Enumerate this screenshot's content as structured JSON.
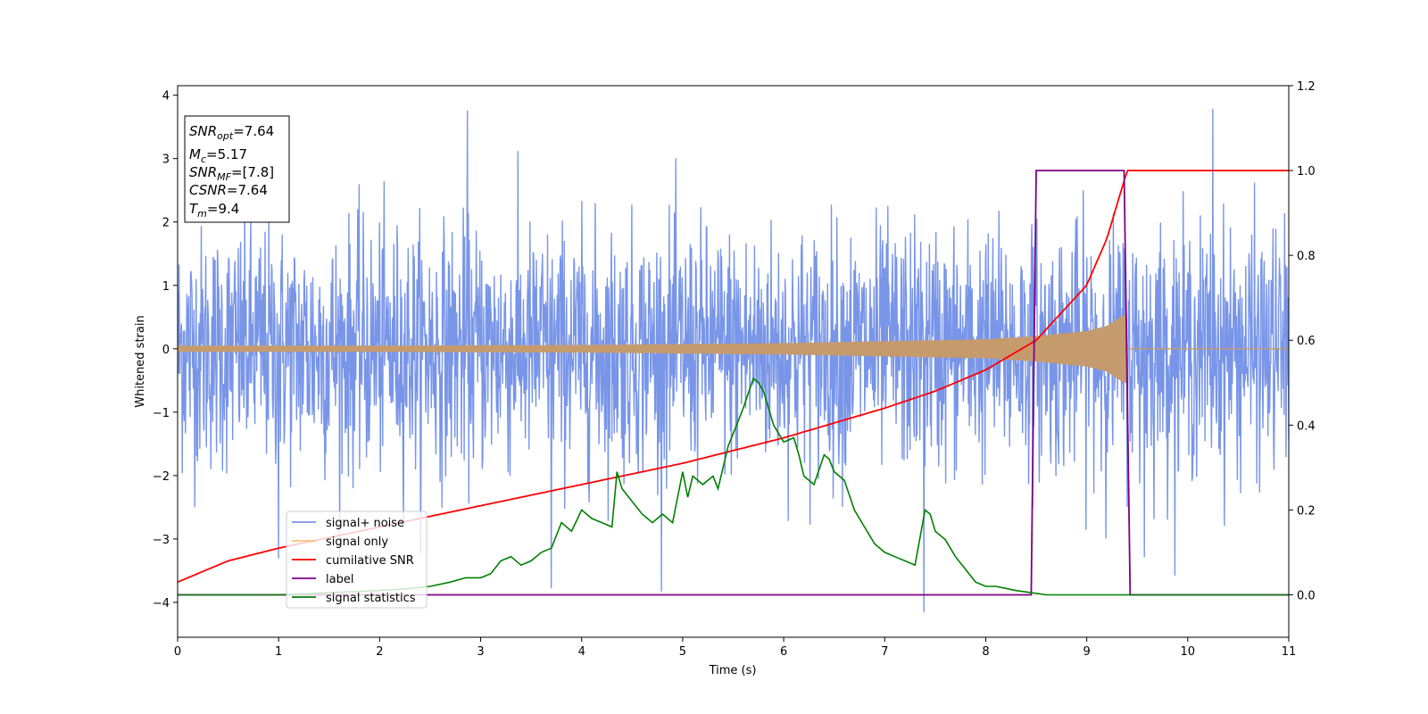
{
  "chart_data": {
    "type": "line",
    "xlabel": "Time (s)",
    "ylabel": "Whitened strain",
    "xlim": [
      0,
      11
    ],
    "ylim": [
      -4.55,
      4.15
    ],
    "y2lim": [
      -0.1,
      1.2
    ],
    "grid": false,
    "x_ticks": [
      0,
      1,
      2,
      3,
      4,
      5,
      6,
      7,
      8,
      9,
      10,
      11
    ],
    "y_ticks": [
      -4,
      -3,
      -2,
      -1,
      0,
      1,
      2,
      3,
      4
    ],
    "y2_ticks": [
      "0.0",
      "0.2",
      "0.4",
      "0.6",
      "0.8",
      "1.0",
      "1.2"
    ],
    "x_tick_labels": [
      "0",
      "1",
      "2",
      "3",
      "4",
      "5",
      "6",
      "7",
      "8",
      "9",
      "10",
      "11"
    ],
    "y_tick_labels": [
      "−4",
      "−3",
      "−2",
      "−1",
      "0",
      "1",
      "2",
      "3",
      "4"
    ],
    "info_box": {
      "lines": [
        {
          "main": "SNR",
          "sub": "opt",
          "value": "=7.64"
        },
        {
          "main": "M",
          "sub": "c",
          "value": "=5.17"
        },
        {
          "main": "SNR",
          "sub": "MF",
          "value": "=[7.8]"
        },
        {
          "main": "CSNR",
          "sub": "",
          "value": "=7.64"
        },
        {
          "main": "T",
          "sub": "m",
          "value": "=9.4"
        }
      ]
    },
    "legend": {
      "location": "lower-left",
      "entries": [
        {
          "label": "signal+ noise",
          "color": "#7895e8"
        },
        {
          "label": "signal only",
          "color": "#f5c27a"
        },
        {
          "label": "cumilative SNR",
          "color": "#ff0000"
        },
        {
          "label": "label",
          "color": "#800080"
        },
        {
          "label": "signal statistics",
          "color": "#008000"
        }
      ]
    },
    "series": [
      {
        "name": "signal+ noise",
        "axis": "left",
        "color": "#7895e8",
        "description_values": {
          "noise_std": 0.95,
          "x_range": [
            0,
            11
          ]
        },
        "extreme_peaks": [
          [
            2.87,
            3.75
          ],
          [
            10.25,
            3.78
          ],
          [
            7.39,
            -4.15
          ],
          [
            3.7,
            -3.77
          ],
          [
            1.0,
            -3.3
          ],
          [
            9.57,
            -3.28
          ]
        ]
      },
      {
        "name": "signal only",
        "axis": "left",
        "color": "#c59b6d",
        "envelope": {
          "x": [
            0,
            2,
            4,
            6,
            8,
            8.5,
            9.0,
            9.2,
            9.35,
            9.4
          ],
          "amplitude": [
            0.05,
            0.05,
            0.06,
            0.09,
            0.15,
            0.2,
            0.28,
            0.36,
            0.52,
            0.55
          ]
        },
        "end": 9.4
      },
      {
        "name": "cumilative SNR",
        "axis": "right",
        "color": "#ff0000",
        "x": [
          0,
          0.5,
          1,
          2,
          3,
          4,
          5,
          6,
          7,
          7.5,
          8,
          8.5,
          9,
          9.2,
          9.4,
          11
        ],
        "y": [
          0.03,
          0.08,
          0.11,
          0.16,
          0.21,
          0.26,
          0.31,
          0.37,
          0.44,
          0.48,
          0.53,
          0.6,
          0.73,
          0.84,
          1.0,
          1.0
        ]
      },
      {
        "name": "label",
        "axis": "right",
        "color": "#800080",
        "x": [
          0,
          8.45,
          8.5,
          9.37,
          9.43,
          11
        ],
        "y": [
          0.0,
          0.0,
          1.0,
          1.0,
          0.0,
          0.0
        ]
      },
      {
        "name": "signal statistics",
        "axis": "right",
        "color": "#008000",
        "x": [
          0,
          1,
          1.5,
          2,
          2.3,
          2.5,
          2.7,
          2.85,
          3.0,
          3.1,
          3.2,
          3.3,
          3.4,
          3.5,
          3.6,
          3.7,
          3.8,
          3.9,
          4.0,
          4.1,
          4.2,
          4.3,
          4.35,
          4.4,
          4.5,
          4.6,
          4.7,
          4.8,
          4.9,
          5.0,
          5.05,
          5.1,
          5.2,
          5.3,
          5.35,
          5.4,
          5.45,
          5.5,
          5.6,
          5.7,
          5.75,
          5.8,
          5.85,
          5.9,
          6.0,
          6.1,
          6.15,
          6.2,
          6.3,
          6.4,
          6.45,
          6.5,
          6.6,
          6.7,
          6.8,
          6.9,
          7.0,
          7.1,
          7.2,
          7.3,
          7.4,
          7.45,
          7.5,
          7.6,
          7.7,
          7.8,
          7.9,
          8.0,
          8.1,
          8.2,
          8.3,
          8.45,
          8.6,
          8.8,
          9.0,
          9.3,
          9.6,
          10.0,
          10.5,
          11
        ],
        "y": [
          0.0,
          0.0,
          0.005,
          0.01,
          0.015,
          0.02,
          0.03,
          0.04,
          0.04,
          0.05,
          0.08,
          0.09,
          0.07,
          0.08,
          0.1,
          0.11,
          0.17,
          0.15,
          0.2,
          0.18,
          0.17,
          0.16,
          0.29,
          0.25,
          0.22,
          0.19,
          0.17,
          0.19,
          0.17,
          0.29,
          0.23,
          0.28,
          0.26,
          0.28,
          0.25,
          0.3,
          0.35,
          0.38,
          0.44,
          0.51,
          0.5,
          0.48,
          0.44,
          0.4,
          0.36,
          0.37,
          0.33,
          0.28,
          0.26,
          0.33,
          0.32,
          0.29,
          0.27,
          0.2,
          0.16,
          0.12,
          0.1,
          0.09,
          0.08,
          0.07,
          0.2,
          0.19,
          0.15,
          0.13,
          0.09,
          0.06,
          0.03,
          0.02,
          0.02,
          0.015,
          0.01,
          0.005,
          0.0,
          0.0,
          0.0,
          0.0,
          0.0,
          0.0,
          0.0,
          0.0
        ]
      }
    ]
  }
}
